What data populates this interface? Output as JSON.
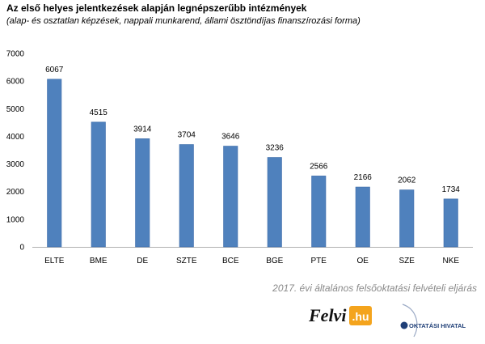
{
  "chart_data": {
    "type": "bar",
    "title": "Az első helyes jelentkezések alapján legnépszerűbb intézmények",
    "subtitle": "(alap- és osztatlan képzések, nappali munkarend, állami ösztöndíjas finanszírozási forma)",
    "xlabel": "",
    "ylabel": "",
    "categories": [
      "ELTE",
      "BME",
      "DE",
      "SZTE",
      "BCE",
      "BGE",
      "PTE",
      "OE",
      "SZE",
      "NKE"
    ],
    "values": [
      6067,
      4515,
      3914,
      3704,
      3646,
      3236,
      2566,
      2166,
      2062,
      1734
    ],
    "data_labels": [
      "6067",
      "4515",
      "3914",
      "3704",
      "3646",
      "3236",
      "2566",
      "2166",
      "2062",
      "1734"
    ],
    "ylim": [
      0,
      7000
    ],
    "yticks": [
      0,
      1000,
      2000,
      3000,
      4000,
      5000,
      6000,
      7000
    ],
    "ytick_labels": [
      "0",
      "1000",
      "2000",
      "3000",
      "4000",
      "5000",
      "6000",
      "7000"
    ],
    "grid": false,
    "legend": "none",
    "bar_color": "#4f81bd",
    "bar_edge_color": "#3a6aa8"
  },
  "footer": {
    "source_text": "2017. évi általános felsőoktatási felvételi eljárás",
    "logo_felvi": {
      "main": "Felvi",
      "suffix": ".hu"
    },
    "logo_oh": "OKTATÁSI HIVATAL",
    "colors": {
      "felvi_text": "#111111",
      "felvi_accent": "#f4a41d",
      "oh_blue": "#1f3f77"
    }
  }
}
